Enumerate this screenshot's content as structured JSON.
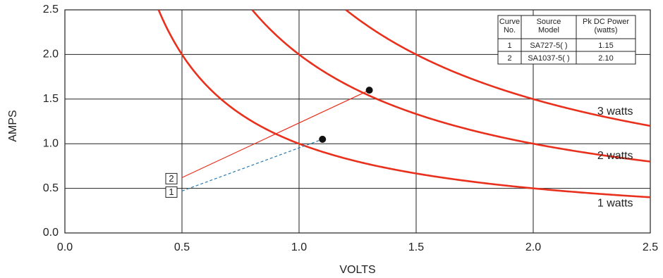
{
  "chart_data": {
    "type": "line",
    "xlabel": "VOLTS",
    "ylabel": "AMPS",
    "xlim": [
      0,
      2.5
    ],
    "ylim": [
      0,
      2.5
    ],
    "x_ticks": [
      "0.0",
      "0.5",
      "1.0",
      "1.5",
      "2.0",
      "2.5"
    ],
    "y_ticks": [
      "0.0",
      "0.5",
      "1.0",
      "1.5",
      "2.0",
      "2.5"
    ],
    "grid": true,
    "series": [
      {
        "name": "1 watts",
        "watts": 1,
        "color": "#e8301c"
      },
      {
        "name": "2 watts",
        "watts": 2,
        "color": "#e8301c"
      },
      {
        "name": "3 watts",
        "watts": 3,
        "color": "#e8301c"
      }
    ],
    "load_lines": [
      {
        "curve": "2",
        "from": [
          0.5,
          0.62
        ],
        "to": [
          1.3,
          1.6
        ],
        "color": "#e8301c",
        "style": "solid"
      },
      {
        "curve": "1",
        "from": [
          0.5,
          0.47
        ],
        "to": [
          1.1,
          1.05
        ],
        "color": "#2a7ab0",
        "style": "dashed"
      }
    ],
    "points": [
      {
        "x": 1.3,
        "y": 1.6
      },
      {
        "x": 1.1,
        "y": 1.05
      }
    ],
    "table": {
      "headers": [
        [
          "Curve",
          "No."
        ],
        [
          "Source",
          "Model"
        ],
        [
          "Pk DC Power",
          "(watts)"
        ]
      ],
      "rows": [
        [
          "1",
          "SA727-5( )",
          "1.15"
        ],
        [
          "2",
          "SA1037-5( )",
          "2.10"
        ]
      ]
    }
  }
}
